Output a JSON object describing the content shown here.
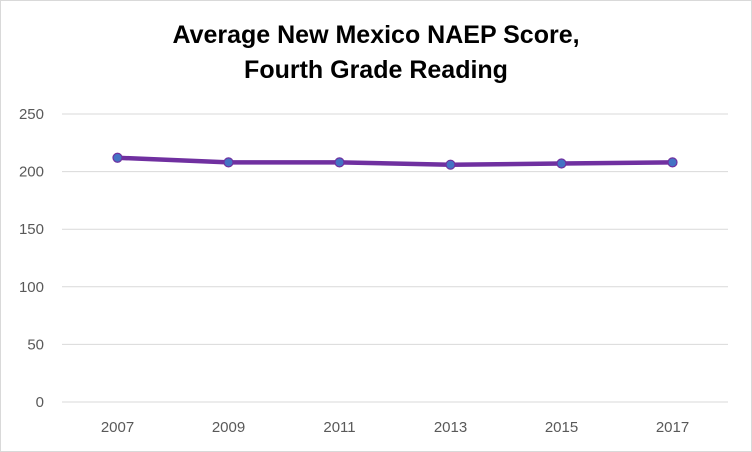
{
  "chart_data": {
    "type": "line",
    "title_lines": [
      "Average New Mexico NAEP Score,",
      "Fourth Grade Reading"
    ],
    "categories": [
      "2007",
      "2009",
      "2011",
      "2013",
      "2015",
      "2017"
    ],
    "series": [
      {
        "name": "New Mexico",
        "values": [
          212,
          208,
          208,
          206,
          207,
          208
        ]
      }
    ],
    "xlabel": "",
    "ylabel": "",
    "ylim": [
      0,
      250
    ],
    "yticks": [
      "0",
      "50",
      "100",
      "150",
      "200",
      "250"
    ],
    "grid": true,
    "legend": "none",
    "colors": {
      "line": "#7030a0",
      "marker": "#4472c4",
      "grid": "#d9d9d9"
    }
  }
}
